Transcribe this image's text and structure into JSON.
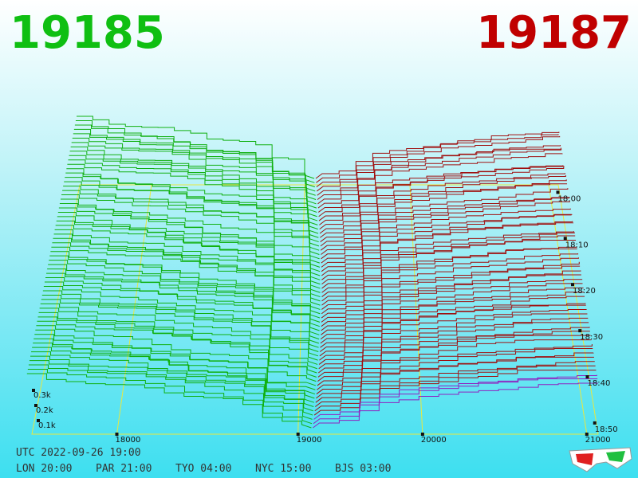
{
  "header": {
    "bid": "19185",
    "ask": "19187"
  },
  "price_labels": [
    "18000",
    "19000",
    "20000",
    "21000"
  ],
  "time_labels": [
    "18:00",
    "18:10",
    "18:20",
    "18:30",
    "18:40",
    "18:50"
  ],
  "depth_labels": [
    "0.3k",
    "0.2k",
    "0.1k"
  ],
  "footer": {
    "utc": "UTC 2022-09-26 19:00",
    "cities": [
      "LON 20:00",
      "PAR 21:00",
      "TYO 04:00",
      "NYC 15:00",
      "BJS 03:00"
    ]
  }
}
